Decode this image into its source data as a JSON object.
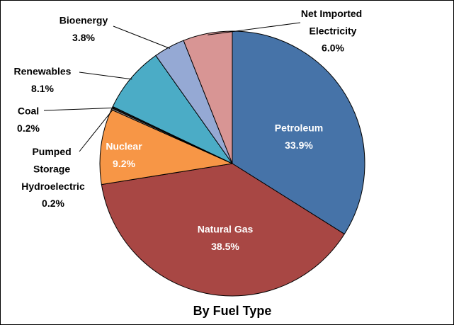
{
  "chart_data": {
    "type": "pie",
    "title": "By Fuel Type",
    "categories": [
      "Petroleum",
      "Natural Gas",
      "Nuclear",
      "Pumped Storage Hydroelectric",
      "Coal",
      "Renewables",
      "Bioenergy",
      "Net Imported Electricity"
    ],
    "values": [
      33.9,
      38.5,
      9.2,
      0.2,
      0.2,
      8.1,
      3.8,
      6.0
    ],
    "value_labels": [
      "33.9%",
      "38.5%",
      "9.2%",
      "0.2%",
      "0.2%",
      "8.1%",
      "3.8%",
      "6.0%"
    ],
    "colors": [
      "#4673a8",
      "#a84744",
      "#f79646",
      "#7f7f7f",
      "#1a1a1a",
      "#4bacc6",
      "#95a9d4",
      "#d89594"
    ]
  }
}
